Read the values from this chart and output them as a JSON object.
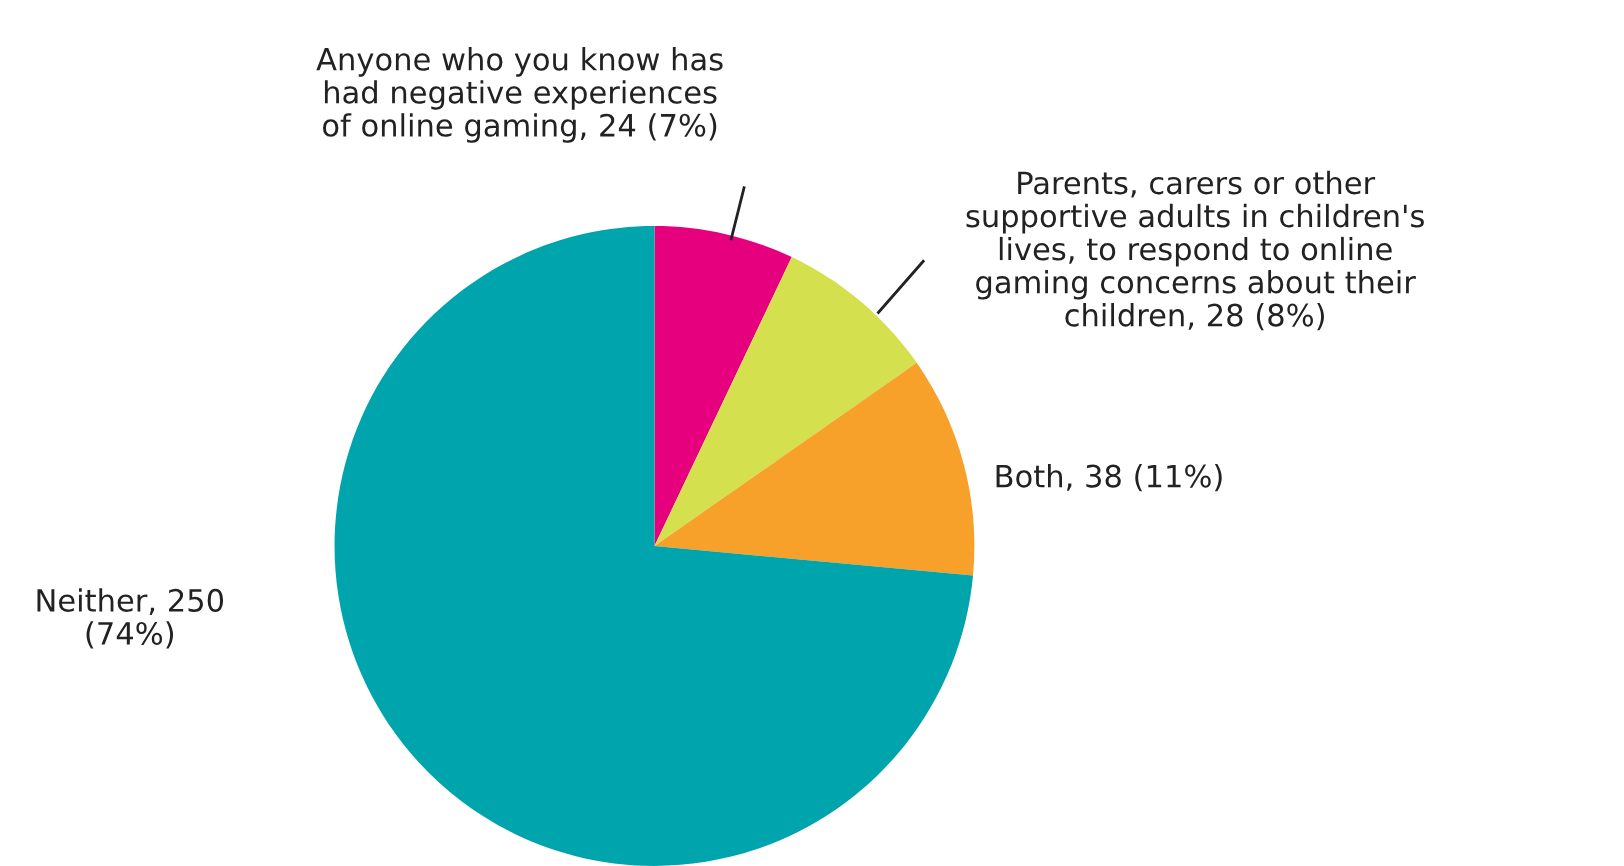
{
  "chart_data": {
    "type": "pie",
    "categories": [
      "Anyone who you know has\nhad negative experiences\nof online gaming",
      "Parents, carers or other\nsupportive adults in children's\nlives, to respond to online\ngaming concerns about their\nchildren",
      "Both",
      "Neither"
    ],
    "values": [
      24,
      28,
      38,
      250
    ],
    "value_labels": [
      "24 (7%)",
      "28 (8%)",
      "38 (11%)",
      "250\n(74%)"
    ],
    "colors": [
      "#e6007e",
      "#d5e04f",
      "#f7a02a",
      "#00a4ad"
    ],
    "legend": false
  }
}
